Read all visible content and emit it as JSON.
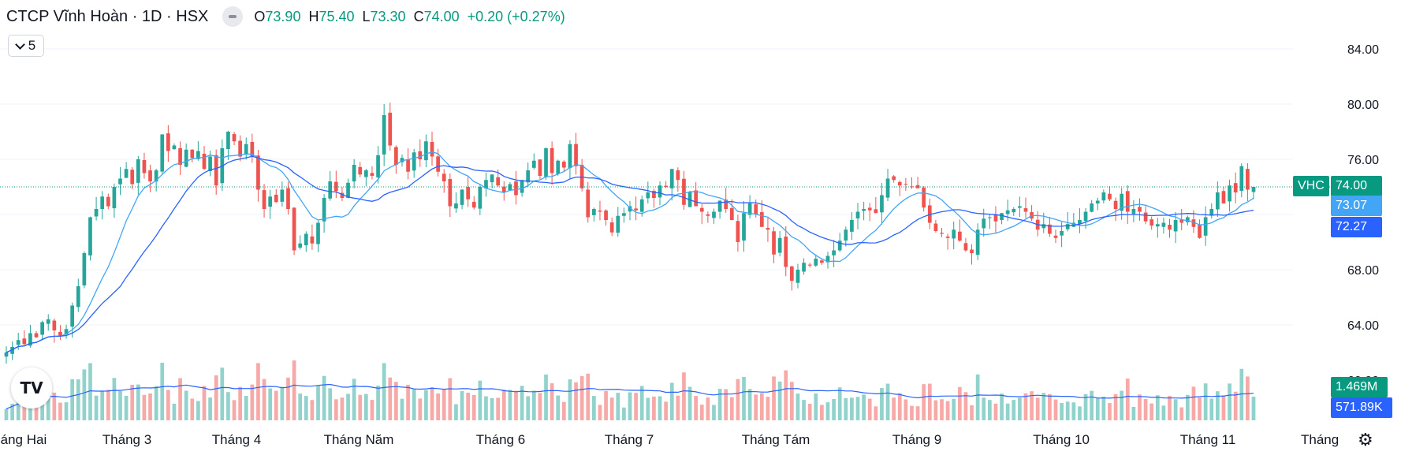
{
  "header": {
    "title": "CTCP Vĩnh Hoàn · 1D · HSX",
    "ohlc": [
      {
        "label": "O",
        "value": "73.90"
      },
      {
        "label": "H",
        "value": "75.40"
      },
      {
        "label": "L",
        "value": "73.30"
      },
      {
        "label": "C",
        "value": "74.00"
      }
    ],
    "change": "+0.20 (+0.27%)"
  },
  "indicators_toggle": {
    "count": "5"
  },
  "logo_text": "TV",
  "price_axis": {
    "labels": [
      "84.00",
      "80.00",
      "76.00",
      "68.00",
      "64.00",
      "60.00"
    ]
  },
  "time_axis": {
    "labels": [
      "Tháng Hai",
      "Tháng 3",
      "Tháng 4",
      "Tháng Năm",
      "Tháng 6",
      "Tháng 7",
      "Tháng Tám",
      "Tháng 9",
      "Tháng 10",
      "Tháng 11",
      "Tháng Mười Hai"
    ]
  },
  "tags": {
    "symbol": "VHC",
    "last_price": "74.00",
    "ma_fast": "73.07",
    "ma_slow": "72.27",
    "volume": "1.469M",
    "volume_ma": "571.89K"
  },
  "colors": {
    "up": "#26a69a",
    "down": "#ef5350",
    "ma_fast": "#42a5f5",
    "ma_slow": "#2962ff",
    "tag_green": "#089981",
    "tag_blue": "#2962ff"
  },
  "chart_data": {
    "type": "candlestick",
    "y_range": [
      58,
      86
    ],
    "closes": [
      62,
      62.4,
      62.9,
      62.6,
      63.4,
      63.1,
      64.2,
      64.4,
      63.6,
      63.2,
      63.7,
      65.4,
      66.8,
      69.2,
      71.8,
      72.4,
      73.3,
      72.6,
      74.0,
      74.6,
      75.3,
      74.2,
      76.0,
      75.0,
      74.4,
      75.2,
      77.8,
      76.6,
      77.0,
      75.6,
      76.7,
      76.1,
      76.6,
      75.3,
      76.2,
      74.1,
      76.8,
      78.0,
      77.3,
      76.2,
      77.1,
      76.2,
      73.8,
      72.4,
      73.3,
      72.9,
      73.8,
      72.4,
      69.4,
      69.9,
      70.6,
      69.9,
      71.4,
      73.2,
      74.4,
      73.7,
      73.2,
      74.3,
      75.6,
      74.9,
      75.2,
      74.8,
      76.3,
      79.2,
      77.0,
      75.6,
      76.1,
      75.1,
      76.5,
      76.0,
      77.3,
      76.2,
      75.1,
      74.4,
      72.6,
      72.8,
      73.8,
      73.1,
      72.5,
      74.0,
      74.5,
      74.9,
      74.1,
      73.6,
      74.2,
      73.4,
      74.5,
      75.2,
      75.9,
      74.8,
      76.8,
      75.0,
      75.9,
      75.4,
      77.1,
      75.5,
      73.9,
      71.8,
      72.4,
      72.2,
      71.6,
      70.7,
      71.9,
      72.1,
      72.6,
      72.3,
      73.1,
      73.6,
      73.2,
      74.1,
      74.0,
      75.3,
      74.5,
      72.7,
      73.6,
      72.6,
      72.2,
      71.9,
      72.2,
      73.0,
      72.4,
      71.6,
      70.0,
      72.1,
      72.8,
      72.0,
      71.1,
      70.9,
      69.1,
      70.3,
      68.2,
      67.2,
      68.0,
      68.5,
      68.3,
      68.8,
      68.5,
      69.0,
      69.4,
      70.1,
      70.9,
      71.6,
      72.2,
      72.4,
      72.3,
      72.1,
      73.4,
      74.6,
      74.5,
      74.1,
      74.2,
      74.0,
      73.9,
      72.5,
      71.4,
      70.8,
      70.6,
      70.3,
      70.9,
      70.1,
      69.4,
      69.2,
      70.9,
      71.7,
      71.8,
      71.5,
      72.1,
      72.3,
      72.4,
      72.6,
      72.2,
      71.7,
      70.9,
      71.3,
      70.6,
      70.3,
      70.8,
      71.3,
      71.4,
      71.6,
      72.2,
      72.8,
      73.0,
      73.6,
      73.1,
      72.4,
      73.5,
      72.2,
      72.4,
      72.2,
      71.5,
      71.2,
      71.3,
      71.4,
      70.9,
      71.6,
      71.4,
      71.8,
      71.1,
      70.3,
      71.8,
      72.4,
      73.6,
      72.8,
      74.1,
      73.6,
      75.5,
      73.8,
      74.0
    ]
  }
}
